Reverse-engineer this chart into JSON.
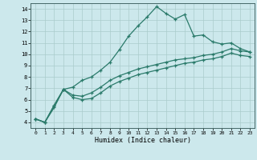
{
  "xlabel": "Humidex (Indice chaleur)",
  "bg_color": "#cce8ec",
  "line_color": "#2a7a6a",
  "grid_color": "#aacccc",
  "xlim": [
    -0.5,
    23.5
  ],
  "ylim": [
    3.5,
    14.5
  ],
  "xticks": [
    0,
    1,
    2,
    3,
    4,
    5,
    6,
    7,
    8,
    9,
    10,
    11,
    12,
    13,
    14,
    15,
    16,
    17,
    18,
    19,
    20,
    21,
    22,
    23
  ],
  "yticks": [
    4,
    5,
    6,
    7,
    8,
    9,
    10,
    11,
    12,
    13,
    14
  ],
  "line1_x": [
    0,
    1,
    2,
    3,
    4,
    5,
    6,
    7,
    8,
    9,
    10,
    11,
    12,
    13,
    14,
    15,
    16,
    17,
    18,
    19,
    20,
    21,
    22,
    23
  ],
  "line1_y": [
    4.3,
    4.0,
    5.3,
    6.9,
    7.1,
    7.7,
    8.0,
    8.6,
    9.3,
    10.4,
    11.6,
    12.5,
    13.3,
    14.2,
    13.6,
    13.1,
    13.5,
    11.6,
    11.7,
    11.1,
    10.9,
    11.0,
    10.5,
    10.2
  ],
  "line2_x": [
    0,
    1,
    2,
    3,
    4,
    5,
    6,
    7,
    8,
    9,
    10,
    11,
    12,
    13,
    14,
    15,
    16,
    17,
    18,
    19,
    20,
    21,
    22,
    23
  ],
  "line2_y": [
    4.3,
    4.0,
    5.5,
    6.9,
    6.4,
    6.3,
    6.6,
    7.1,
    7.7,
    8.1,
    8.4,
    8.7,
    8.9,
    9.1,
    9.3,
    9.5,
    9.6,
    9.7,
    9.9,
    10.0,
    10.2,
    10.5,
    10.3,
    10.2
  ],
  "line3_x": [
    0,
    1,
    2,
    3,
    4,
    5,
    6,
    7,
    8,
    9,
    10,
    11,
    12,
    13,
    14,
    15,
    16,
    17,
    18,
    19,
    20,
    21,
    22,
    23
  ],
  "line3_y": [
    4.3,
    4.0,
    5.5,
    6.9,
    6.2,
    6.0,
    6.1,
    6.6,
    7.2,
    7.6,
    7.9,
    8.2,
    8.4,
    8.6,
    8.8,
    9.0,
    9.2,
    9.3,
    9.5,
    9.6,
    9.8,
    10.1,
    9.9,
    9.8
  ]
}
